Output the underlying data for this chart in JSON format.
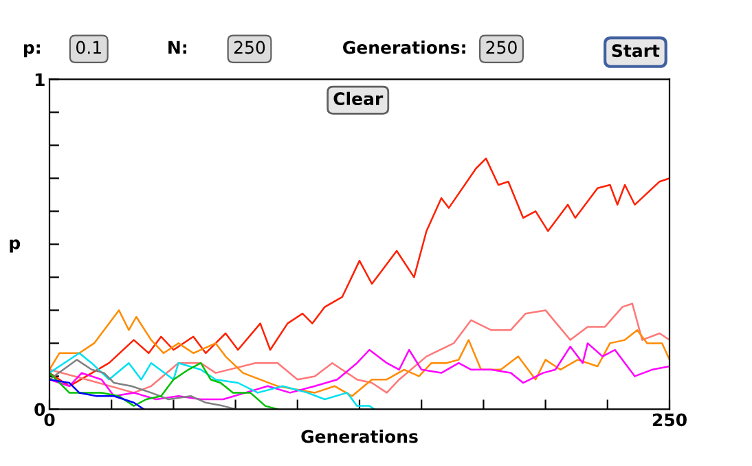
{
  "chart_data": {
    "type": "line",
    "xlabel": "Generations",
    "ylabel": "p",
    "xlim": [
      0,
      250
    ],
    "ylim": [
      0,
      1
    ],
    "xticks": [
      0,
      {
        "value": 25,
        "label": null
      },
      {
        "value": 50,
        "label": null
      },
      {
        "value": 75,
        "label": null
      },
      {
        "value": 100,
        "label": null
      },
      {
        "value": 125,
        "label": null
      },
      {
        "value": 150,
        "label": null
      },
      {
        "value": 175,
        "label": null
      },
      {
        "value": 200,
        "label": null
      },
      {
        "value": 225,
        "label": null
      },
      250
    ],
    "yticks": [
      0,
      {
        "value": 0.1,
        "label": null
      },
      {
        "value": 0.2,
        "label": null
      },
      {
        "value": 0.3,
        "label": null
      },
      {
        "value": 0.4,
        "label": null
      },
      {
        "value": 0.5,
        "label": null
      },
      {
        "value": 0.6,
        "label": null
      },
      {
        "value": 0.7,
        "label": null
      },
      {
        "value": 0.8,
        "label": null
      },
      {
        "value": 0.9,
        "label": null
      },
      1
    ],
    "grid": false,
    "marker": "none",
    "line_style": "solid",
    "annotations": [
      "p:",
      "0.1",
      "N:",
      "250",
      "Generations:",
      "250",
      "Start",
      "Clear"
    ],
    "series": [
      {
        "color": "#ff2000",
        "x": [
          0,
          8,
          24,
          34,
          40,
          45,
          50,
          58,
          63,
          71,
          76,
          85,
          89,
          96,
          102,
          106,
          111,
          118,
          125,
          130,
          140,
          147,
          152,
          158,
          161,
          172,
          176,
          181,
          185,
          191,
          196,
          201,
          209,
          212,
          221,
          226,
          229,
          232,
          236,
          246,
          250
        ],
        "values": [
          0.11,
          0.07,
          0.14,
          0.21,
          0.17,
          0.22,
          0.18,
          0.22,
          0.17,
          0.23,
          0.18,
          0.26,
          0.18,
          0.26,
          0.29,
          0.26,
          0.31,
          0.34,
          0.45,
          0.38,
          0.48,
          0.4,
          0.54,
          0.64,
          0.61,
          0.73,
          0.76,
          0.68,
          0.69,
          0.58,
          0.6,
          0.54,
          0.62,
          0.58,
          0.67,
          0.68,
          0.62,
          0.68,
          0.62,
          0.69,
          0.7
        ]
      },
      {
        "color": "#ff7878",
        "x": [
          0,
          15,
          34,
          41,
          52,
          61,
          67,
          83,
          92,
          100,
          107,
          114,
          124,
          130,
          136,
          141,
          152,
          163,
          170,
          178,
          186,
          192,
          200,
          210,
          217,
          224,
          231,
          235,
          239,
          246,
          250
        ],
        "values": [
          0.12,
          0.09,
          0.05,
          0.07,
          0.14,
          0.14,
          0.11,
          0.14,
          0.14,
          0.09,
          0.1,
          0.14,
          0.09,
          0.08,
          0.05,
          0.09,
          0.16,
          0.2,
          0.27,
          0.24,
          0.24,
          0.29,
          0.3,
          0.21,
          0.25,
          0.25,
          0.31,
          0.32,
          0.21,
          0.23,
          0.21
        ]
      },
      {
        "color": "#ff8c00",
        "x": [
          0,
          4,
          12,
          18,
          28,
          32,
          35,
          41,
          46,
          52,
          58,
          67,
          71,
          78,
          92,
          107,
          115,
          122,
          130,
          136,
          143,
          149,
          154,
          160,
          165,
          169,
          174,
          182,
          189,
          196,
          200,
          206,
          213,
          221,
          226,
          232,
          237,
          241,
          247,
          250
        ],
        "values": [
          0.12,
          0.17,
          0.17,
          0.2,
          0.3,
          0.24,
          0.28,
          0.21,
          0.17,
          0.2,
          0.17,
          0.2,
          0.16,
          0.11,
          0.07,
          0.05,
          0.07,
          0.04,
          0.09,
          0.09,
          0.12,
          0.1,
          0.14,
          0.14,
          0.15,
          0.21,
          0.12,
          0.12,
          0.16,
          0.09,
          0.15,
          0.12,
          0.15,
          0.13,
          0.2,
          0.21,
          0.24,
          0.2,
          0.2,
          0.15
        ]
      },
      {
        "color": "#ff00ff",
        "x": [
          0,
          8,
          13,
          21,
          26,
          34,
          43,
          52,
          61,
          70,
          79,
          88,
          97,
          107,
          116,
          124,
          129,
          136,
          141,
          145,
          150,
          158,
          165,
          170,
          178,
          186,
          191,
          199,
          204,
          210,
          215,
          217,
          223,
          228,
          236,
          243,
          250
        ],
        "values": [
          0.09,
          0.07,
          0.11,
          0.09,
          0.04,
          0.05,
          0.03,
          0.04,
          0.03,
          0.03,
          0.05,
          0.07,
          0.05,
          0.07,
          0.09,
          0.14,
          0.18,
          0.14,
          0.12,
          0.18,
          0.12,
          0.11,
          0.14,
          0.12,
          0.12,
          0.11,
          0.08,
          0.11,
          0.12,
          0.19,
          0.14,
          0.2,
          0.16,
          0.18,
          0.1,
          0.12,
          0.13
        ]
      },
      {
        "color": "#00e0f0",
        "x": [
          0,
          12,
          17,
          24,
          32,
          37,
          41,
          50,
          52,
          61,
          67,
          76,
          84,
          94,
          104,
          111,
          120,
          124,
          129,
          131
        ],
        "values": [
          0.11,
          0.17,
          0.14,
          0.09,
          0.14,
          0.09,
          0.14,
          0.09,
          0.14,
          0.12,
          0.09,
          0.08,
          0.05,
          0.07,
          0.05,
          0.03,
          0.05,
          0.01,
          0.01,
          0
        ]
      },
      {
        "color": "#808080",
        "x": [
          0,
          11,
          17,
          22,
          26,
          33,
          41,
          48,
          57,
          63,
          70,
          75
        ],
        "values": [
          0.09,
          0.15,
          0.12,
          0.11,
          0.08,
          0.07,
          0.05,
          0.03,
          0.04,
          0.02,
          0.01,
          0
        ]
      },
      {
        "color": "#00c000",
        "x": [
          0,
          8,
          15,
          21,
          28,
          34,
          39,
          45,
          50,
          56,
          61,
          65,
          69,
          74,
          81,
          87,
          92
        ],
        "values": [
          0.11,
          0.05,
          0.05,
          0.05,
          0.04,
          0.01,
          0.03,
          0.04,
          0.09,
          0.12,
          0.14,
          0.09,
          0.08,
          0.05,
          0.05,
          0.01,
          0
        ]
      },
      {
        "color": "#0000ff",
        "x": [
          0,
          8,
          12,
          19,
          26,
          34,
          38
        ],
        "values": [
          0.09,
          0.08,
          0.05,
          0.04,
          0.04,
          0.02,
          0
        ]
      }
    ]
  }
}
